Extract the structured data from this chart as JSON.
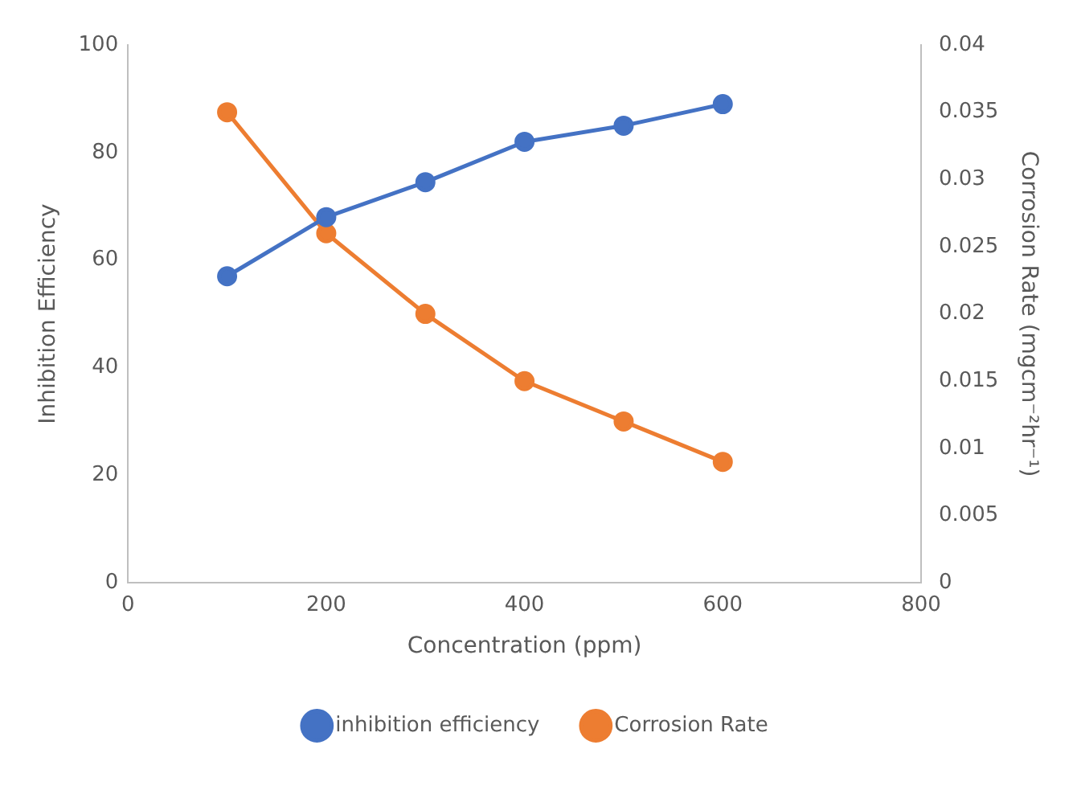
{
  "chart_data": {
    "type": "line",
    "xlabel": "Concentration (ppm)",
    "ylabel": "Inhibition Efficiency",
    "y2label": "Corrosion Rate (mgcm⁻²hr⁻¹)",
    "x": [
      100,
      200,
      300,
      400,
      500,
      600
    ],
    "series": [
      {
        "name": "inhibition efficiency",
        "color": "#4472c4",
        "values": [
          57,
          68,
          74.5,
          82,
          85,
          89
        ]
      },
      {
        "name": "Corrosion Rate",
        "color": "#ed7d31",
        "axis": "y2",
        "values": [
          0.035,
          0.026,
          0.02,
          0.015,
          0.012,
          0.009
        ]
      }
    ],
    "xlim": [
      0,
      800
    ],
    "xticks": [
      0,
      200,
      400,
      600,
      800
    ],
    "ylim": [
      0,
      100
    ],
    "yticks": [
      0,
      20,
      40,
      60,
      80,
      100
    ],
    "y2lim": [
      0,
      0.04
    ],
    "y2ticks": [
      0,
      0.005,
      0.01,
      0.015,
      0.02,
      0.025,
      0.03,
      0.035,
      0.04
    ],
    "grid": false,
    "legend": "bottom",
    "marker": "circle",
    "line_style": "solid"
  }
}
